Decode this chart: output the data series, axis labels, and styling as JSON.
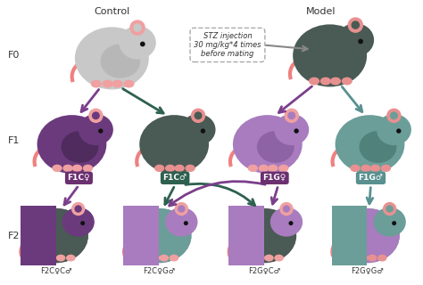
{
  "bg_color": "#ffffff",
  "fig_width": 4.74,
  "fig_height": 3.2,
  "dpi": 100,
  "labels": {
    "control": "Control",
    "model": "Model",
    "stz_box": "STZ injection\n30 mg/kg*4 times\nbefore mating",
    "f1cq": "F1C♀",
    "f1cd": "F1C♂",
    "f1gq": "F1G♀",
    "f1gd": "F1G♂",
    "f2cqcd": "F2C♀C♂",
    "f2cqgd": "F2C♀G♂",
    "f2gqcd": "F2G♀C♂",
    "f2gqgd": "F2G♀G♂"
  },
  "colors": {
    "white_mouse": "#c8c8c8",
    "dark_mouse": "#4a5a54",
    "purple_mouse": "#6b3a7d",
    "light_purple_mouse": "#a87cbf",
    "teal_mouse": "#6b9e98",
    "gray_shade": "#9aaba8",
    "pink_tail": "#f08080",
    "ear_pink": "#f4a0a0",
    "purple_arrow": "#7b3f8c",
    "teal_arrow": "#5a9090",
    "dark_green_arrow": "#2e6050",
    "label_bg_purple": "#6b3070",
    "label_bg_teal": "#2e6050",
    "text_dark": "#333333"
  }
}
